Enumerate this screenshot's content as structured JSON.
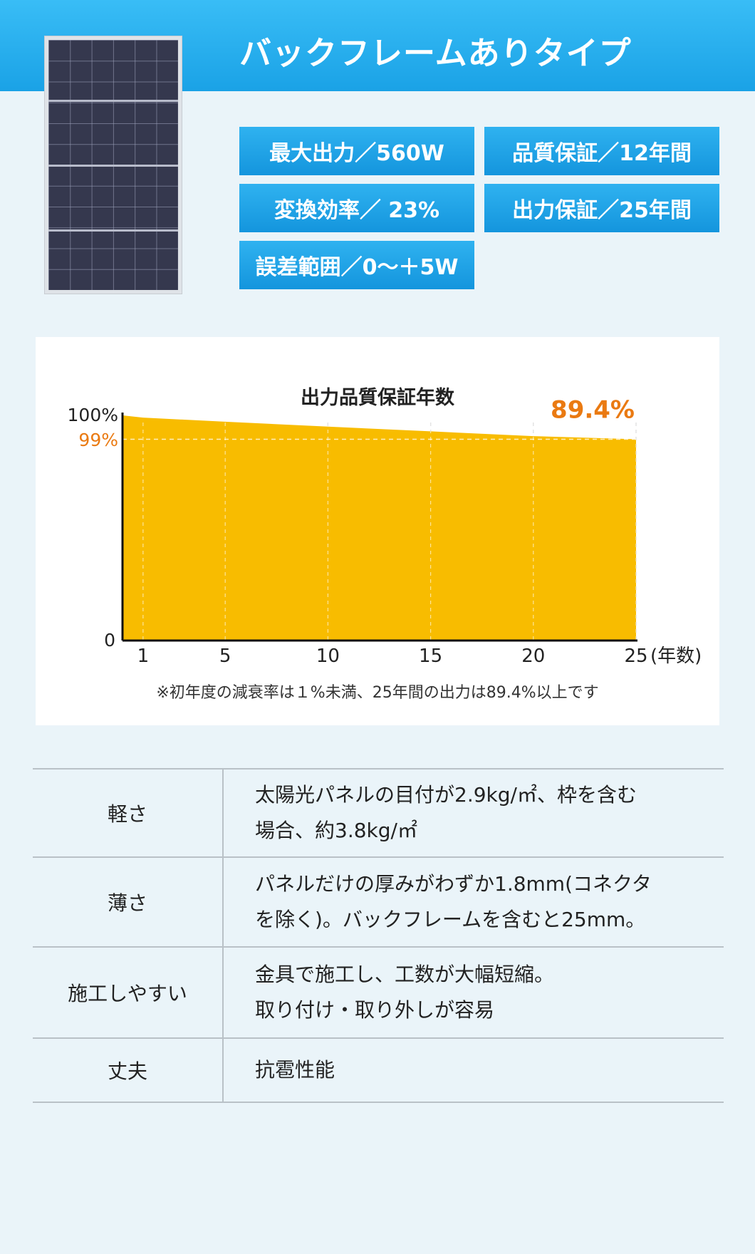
{
  "header": {
    "title": "バックフレームありタイプ",
    "colors": {
      "band": "#1aa2e6",
      "text": "#ffffff"
    }
  },
  "panel_image": {
    "icon": "solar-panel-image"
  },
  "specs": [
    "最大出力／560W",
    "品質保証／12年間",
    "変換効率／ 23%",
    "出力保証／25年間",
    "誤差範囲／0〜＋5W"
  ],
  "chart_data": {
    "type": "area",
    "title": "出力品質保証年数",
    "x": [
      0,
      1,
      5,
      10,
      15,
      20,
      25
    ],
    "values": [
      100,
      99,
      97.2,
      95,
      92.9,
      90.8,
      89.4
    ],
    "x_ticks": [
      "1",
      "5",
      "10",
      "15",
      "20",
      "25"
    ],
    "x_tick_values": [
      1,
      5,
      10,
      15,
      20,
      25
    ],
    "x_unit": "(年数)",
    "y_ticks": [
      "0",
      "100%"
    ],
    "y_highlight_label": "99%",
    "y_highlight_value": 99,
    "end_value_label": "89.4%",
    "end_value": 89.4,
    "xlim": [
      0,
      25
    ],
    "ylim": [
      0,
      100
    ],
    "grid": "vertical dashed",
    "fill_color": "#f8bc00",
    "highlight_color": "#ea7a12",
    "footnote": "※初年度の減衰率は１%未満、25年間の出力は89.4%以上です"
  },
  "table": [
    {
      "label": "軽さ",
      "lines": [
        "太陽光パネルの目付が2.9kg/㎡、枠を含む",
        "場合、約3.8kg/㎡"
      ]
    },
    {
      "label": "薄さ",
      "lines": [
        "パネルだけの厚みがわずか1.8mm(コネクタ",
        "を除く)。バックフレームを含むと25mm。"
      ]
    },
    {
      "label": "施工しやすい",
      "lines": [
        "金具で施工し、工数が大幅短縮。",
        "取り付け・取り外しが容易"
      ]
    },
    {
      "label": "丈夫",
      "lines": [
        "抗雹性能"
      ]
    }
  ]
}
